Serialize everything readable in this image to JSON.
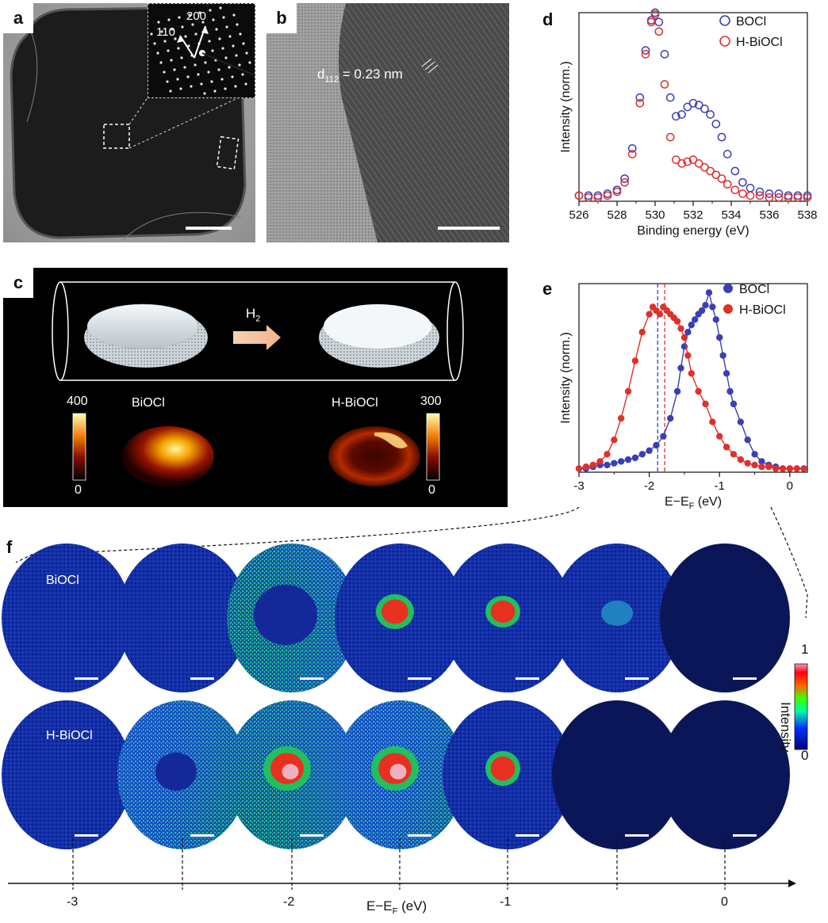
{
  "panels": {
    "a": {
      "letter": "a",
      "inset_labels": [
        "110",
        "200"
      ]
    },
    "b": {
      "letter": "b",
      "lattice_label": "d",
      "lattice_sub": "112",
      "lattice_value": " = 0.23 nm"
    },
    "c": {
      "letter": "c",
      "arrow_label": "H",
      "arrow_sub": "2",
      "left_label": "BiOCl",
      "right_label": "H-BiOCl",
      "left_cbar_max": "400",
      "left_cbar_min": "0",
      "right_cbar_max": "300",
      "right_cbar_min": "0"
    },
    "d": {
      "letter": "d"
    },
    "e": {
      "letter": "e"
    },
    "f": {
      "letter": "f",
      "row_labels": [
        "BiOCl",
        "H-BiOCl"
      ],
      "cbar_max": "1",
      "cbar_min": "0",
      "cbar_label": "Intensity",
      "axis_ticks": [
        "-3",
        "-2",
        "-1",
        "0"
      ],
      "axis_label": "E−E",
      "axis_label_sub": "F",
      "axis_label_unit": " (eV)"
    }
  },
  "chart_data": [
    {
      "type": "scatter",
      "panel": "d",
      "xlabel": "Binding energy (eV)",
      "ylabel": "Intensity (norm.)",
      "xlim": [
        526,
        538
      ],
      "ylim": [
        0,
        1.0
      ],
      "xticks": [
        "526",
        "528",
        "530",
        "532",
        "534",
        "536",
        "538"
      ],
      "legend": "top-right",
      "series": [
        {
          "name": "BOCl",
          "color": "#3b3fb5",
          "x": [
            526,
            526.5,
            527,
            527.5,
            528,
            528.4,
            528.8,
            529.2,
            529.5,
            529.8,
            530,
            530.2,
            530.5,
            530.8,
            531.1,
            531.4,
            531.7,
            532,
            532.3,
            532.6,
            532.9,
            533.2,
            533.5,
            533.8,
            534.2,
            534.6,
            535,
            535.5,
            536,
            536.5,
            537,
            537.5,
            538
          ],
          "y": [
            0.03,
            0.03,
            0.03,
            0.04,
            0.06,
            0.12,
            0.28,
            0.55,
            0.8,
            0.96,
            1.0,
            0.95,
            0.78,
            0.55,
            0.45,
            0.46,
            0.5,
            0.52,
            0.51,
            0.49,
            0.46,
            0.41,
            0.34,
            0.25,
            0.16,
            0.1,
            0.07,
            0.05,
            0.04,
            0.04,
            0.03,
            0.03,
            0.03
          ]
        },
        {
          "name": "H-BiOCl",
          "color": "#e0302c",
          "x": [
            526,
            526.5,
            527,
            527.5,
            528,
            528.4,
            528.8,
            529.2,
            529.5,
            529.8,
            530,
            530.2,
            530.5,
            530.8,
            531.1,
            531.4,
            531.7,
            532,
            532.3,
            532.6,
            532.9,
            533.2,
            533.5,
            533.8,
            534.2,
            534.6,
            535,
            535.5,
            536,
            536.5,
            537,
            537.5,
            538
          ],
          "y": [
            0.03,
            0.02,
            0.02,
            0.03,
            0.05,
            0.1,
            0.25,
            0.52,
            0.78,
            0.95,
            0.99,
            0.9,
            0.62,
            0.34,
            0.22,
            0.2,
            0.21,
            0.22,
            0.2,
            0.18,
            0.16,
            0.14,
            0.12,
            0.09,
            0.06,
            0.04,
            0.03,
            0.03,
            0.02,
            0.02,
            0.02,
            0.02,
            0.02
          ]
        }
      ]
    },
    {
      "type": "line",
      "panel": "e",
      "xlabel": "E−E",
      "xlabel_sub": "F",
      "xlabel_unit": " (eV)",
      "ylabel": "Intensity (norm.)",
      "xlim": [
        -3,
        0.25
      ],
      "ylim": [
        0,
        1.05
      ],
      "xticks": [
        -3,
        -2,
        -1,
        0
      ],
      "legend": "top-right",
      "vlines": [
        {
          "x": -1.88,
          "color": "#3b3fb5"
        },
        {
          "x": -1.78,
          "color": "#e0302c"
        }
      ],
      "series": [
        {
          "name": "BOCl",
          "color": "#3b3fb5",
          "x": [
            -3,
            -2.9,
            -2.8,
            -2.7,
            -2.6,
            -2.5,
            -2.4,
            -2.3,
            -2.2,
            -2.1,
            -2.0,
            -1.9,
            -1.8,
            -1.7,
            -1.6,
            -1.55,
            -1.5,
            -1.45,
            -1.4,
            -1.35,
            -1.3,
            -1.25,
            -1.2,
            -1.15,
            -1.1,
            -1.05,
            -1.0,
            -0.95,
            -0.9,
            -0.85,
            -0.8,
            -0.7,
            -0.6,
            -0.5,
            -0.4,
            -0.3,
            -0.2,
            -0.1,
            0,
            0.1,
            0.2
          ],
          "y": [
            0.02,
            0.02,
            0.03,
            0.04,
            0.04,
            0.05,
            0.06,
            0.07,
            0.08,
            0.1,
            0.12,
            0.15,
            0.2,
            0.3,
            0.45,
            0.58,
            0.7,
            0.78,
            0.82,
            0.85,
            0.88,
            0.9,
            0.93,
            1.0,
            0.92,
            0.85,
            0.75,
            0.65,
            0.55,
            0.45,
            0.38,
            0.28,
            0.18,
            0.1,
            0.06,
            0.04,
            0.03,
            0.02,
            0.02,
            0.02,
            0.02
          ]
        },
        {
          "name": "H-BiOCl",
          "color": "#e0302c",
          "x": [
            -3,
            -2.9,
            -2.8,
            -2.7,
            -2.6,
            -2.5,
            -2.4,
            -2.3,
            -2.2,
            -2.1,
            -2.0,
            -1.95,
            -1.9,
            -1.85,
            -1.8,
            -1.75,
            -1.7,
            -1.65,
            -1.6,
            -1.55,
            -1.5,
            -1.45,
            -1.4,
            -1.3,
            -1.2,
            -1.1,
            -1.0,
            -0.9,
            -0.8,
            -0.7,
            -0.6,
            -0.5,
            -0.4,
            -0.3,
            -0.2,
            -0.1,
            0,
            0.1,
            0.2
          ],
          "y": [
            0.02,
            0.03,
            0.04,
            0.06,
            0.1,
            0.18,
            0.3,
            0.45,
            0.62,
            0.78,
            0.88,
            0.92,
            0.9,
            0.88,
            0.92,
            0.9,
            0.88,
            0.86,
            0.84,
            0.8,
            0.75,
            0.65,
            0.55,
            0.45,
            0.38,
            0.28,
            0.2,
            0.14,
            0.1,
            0.07,
            0.05,
            0.04,
            0.03,
            0.03,
            0.02,
            0.02,
            0.02,
            0.02,
            0.02
          ]
        }
      ]
    }
  ]
}
